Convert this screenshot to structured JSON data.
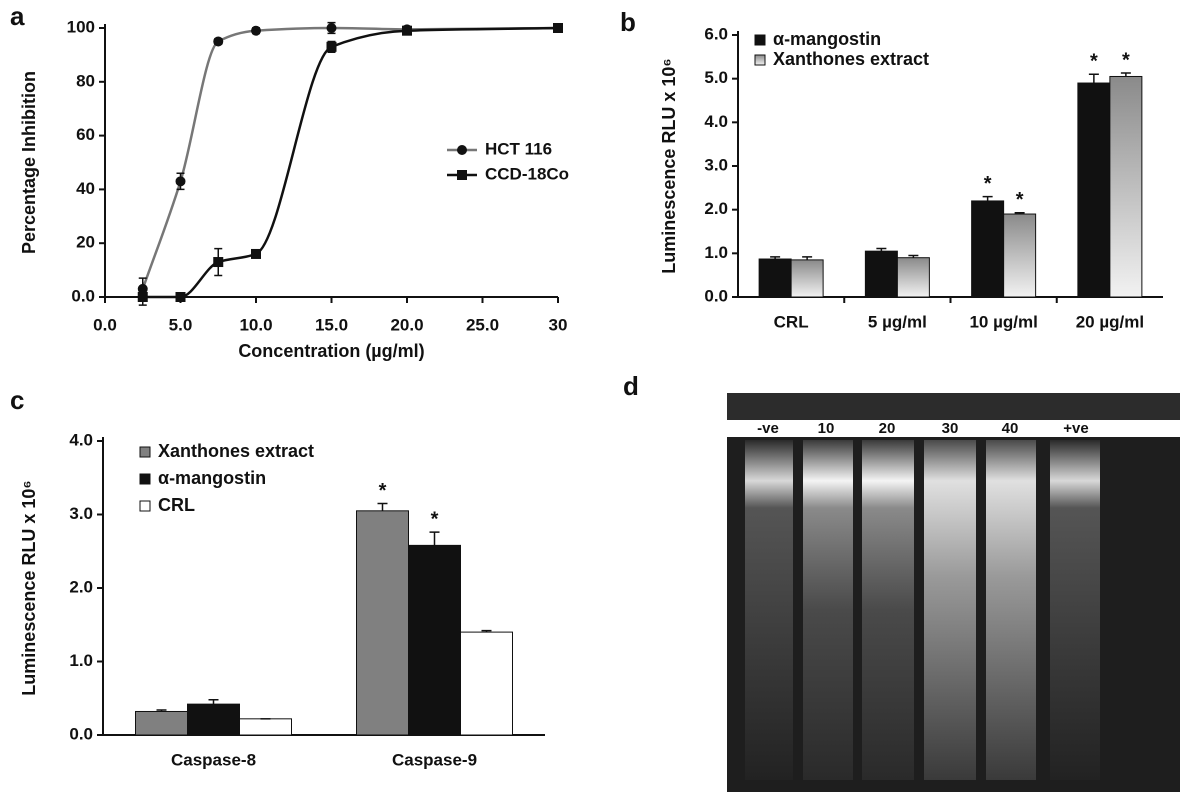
{
  "chart_data": [
    {
      "type": "line",
      "panel": "a",
      "x_label": "Concentration (µg/ml)",
      "y_label": "Percentage Inhibition",
      "x": [
        2.5,
        5,
        7.5,
        10,
        15,
        20,
        30
      ],
      "series": [
        {
          "name": "HCT 116",
          "color": "#777777",
          "marker": "circle",
          "values": [
            3,
            43,
            95,
            99,
            100,
            99.5,
            100
          ],
          "errors": [
            4,
            3,
            1,
            1,
            2,
            1,
            1
          ]
        },
        {
          "name": "CCD-18Co",
          "color": "#111111",
          "marker": "square",
          "values": [
            0,
            0,
            13,
            16,
            93,
            99,
            100
          ],
          "errors": [
            3,
            1,
            5,
            1,
            2,
            1,
            1
          ]
        }
      ],
      "xlim": [
        0,
        30
      ],
      "ylim": [
        0,
        100
      ],
      "xticks": [
        {
          "value": 0,
          "label": "0.0"
        },
        {
          "value": 5,
          "label": "5.0"
        },
        {
          "value": 10,
          "label": "10.0"
        },
        {
          "value": 15,
          "label": "15.0"
        },
        {
          "value": 20,
          "label": "20.0"
        },
        {
          "value": 25,
          "label": "25.0"
        },
        30
      ],
      "yticks": [
        {
          "value": 0,
          "label": "0.0"
        },
        20,
        40,
        60,
        80,
        100
      ],
      "legend": "right"
    },
    {
      "type": "bar",
      "panel": "b",
      "y_label": "Luminescence RLU x 10⁶",
      "categories": [
        "CRL",
        "5 µg/ml",
        "10 µg/ml",
        "20 µg/ml"
      ],
      "series": [
        {
          "name": "α-mangostin",
          "color": "#111111",
          "values": [
            0.87,
            1.05,
            2.2,
            4.9
          ],
          "errors": [
            0.05,
            0.06,
            0.1,
            0.2
          ],
          "significance": [
            null,
            null,
            "*",
            "*"
          ]
        },
        {
          "name": "Xanthones extract",
          "color": "#8a8a8a",
          "gradient_to": "#f2f2f2",
          "values": [
            0.85,
            0.9,
            1.9,
            5.05
          ],
          "errors": [
            0.07,
            0.05,
            0.03,
            0.08
          ],
          "significance": [
            null,
            null,
            "*",
            "*"
          ]
        }
      ],
      "ylim": [
        0,
        6
      ],
      "yticks": [
        {
          "value": 0,
          "label": "0.0"
        },
        {
          "value": 1,
          "label": "1.0"
        },
        {
          "value": 2,
          "label": "2.0"
        },
        {
          "value": 3,
          "label": "3.0"
        },
        {
          "value": 4,
          "label": "4.0"
        },
        {
          "value": 5,
          "label": "5.0"
        },
        {
          "value": 6,
          "label": "6.0"
        }
      ],
      "legend": "top-left"
    },
    {
      "type": "bar",
      "panel": "c",
      "y_label": "Luminescence RLU x 10⁶",
      "categories": [
        "Caspase-8",
        "Caspase-9"
      ],
      "series": [
        {
          "name": "Xanthones extract",
          "color": "#808080",
          "values": [
            0.32,
            3.05
          ],
          "errors": [
            0.02,
            0.1
          ],
          "significance": [
            null,
            "*"
          ]
        },
        {
          "name": "α-mangostin",
          "color": "#111111",
          "values": [
            0.42,
            2.58
          ],
          "errors": [
            0.06,
            0.18
          ],
          "significance": [
            null,
            "*"
          ]
        },
        {
          "name": "CRL",
          "color": "#ffffff",
          "values": [
            0.22,
            1.4
          ],
          "errors": [
            0,
            0.02
          ],
          "significance": [
            null,
            null
          ]
        }
      ],
      "ylim": [
        0,
        4
      ],
      "yticks": [
        {
          "value": 0,
          "label": "0.0"
        },
        {
          "value": 1,
          "label": "1.0"
        },
        {
          "value": 2,
          "label": "2.0"
        },
        {
          "value": 3,
          "label": "3.0"
        },
        {
          "value": 4,
          "label": "4.0"
        }
      ],
      "legend": "top-left"
    }
  ],
  "gel": {
    "panel": "d",
    "lanes": [
      "-ve",
      "10",
      "20",
      "30",
      "40",
      "+ve"
    ]
  }
}
